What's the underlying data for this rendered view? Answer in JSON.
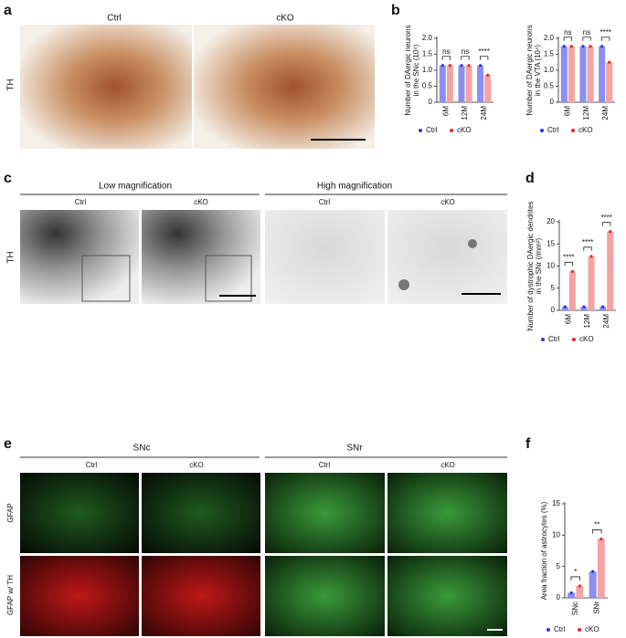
{
  "figure": {
    "panel_labels": [
      "a",
      "b",
      "c",
      "d",
      "e",
      "f"
    ],
    "a": {
      "columns": [
        "Ctrl",
        "cKO"
      ],
      "row": "TH"
    },
    "c": {
      "groups": [
        "Low magnification",
        "High magnification"
      ],
      "columns": [
        "Ctrl",
        "cKO",
        "Ctrl",
        "cKO"
      ],
      "row": "TH"
    },
    "e": {
      "groups": [
        "SNc",
        "SNr"
      ],
      "columns": [
        "Ctrl",
        "cKO",
        "Ctrl",
        "cKO"
      ],
      "rows": [
        "GFAP",
        "GFAP w/ TH"
      ]
    }
  },
  "chart_data": [
    {
      "type": "bar",
      "ylabel": [
        "Number of DAergic neurons",
        "in the SNc (10⁴)"
      ],
      "categories": [
        "6M",
        "12M",
        "24M"
      ],
      "series": [
        {
          "name": "Ctrl",
          "color": "#8a8ff0",
          "values": [
            1.15,
            1.15,
            1.15
          ]
        },
        {
          "name": "cKO",
          "color": "#f5a3a3",
          "values": [
            1.15,
            1.15,
            0.85
          ]
        }
      ],
      "annotations": [
        "ns",
        "ns",
        "****"
      ],
      "ylim": [
        0,
        2
      ],
      "yticks": [
        0,
        0.5,
        {
          "value": 1,
          "label": "1.0"
        },
        1.5,
        {
          "value": 2,
          "label": "2.0"
        }
      ]
    },
    {
      "type": "bar",
      "ylabel": [
        "Number of DAergic neurons",
        "in the VTA (10⁴)"
      ],
      "categories": [
        "6M",
        "12M",
        "24M"
      ],
      "series": [
        {
          "name": "Ctrl",
          "color": "#8a8ff0",
          "values": [
            1.75,
            1.75,
            1.75
          ]
        },
        {
          "name": "cKO",
          "color": "#f5a3a3",
          "values": [
            1.75,
            1.75,
            1.25
          ]
        }
      ],
      "annotations": [
        "ns",
        "ns",
        "****"
      ],
      "ylim": [
        0,
        2
      ],
      "yticks": [
        0,
        0.5,
        {
          "value": 1,
          "label": "1.0"
        },
        1.5,
        {
          "value": 2,
          "label": "2.0"
        }
      ]
    },
    {
      "type": "bar",
      "ylabel": [
        "Number of dystrophic DAergic dendrites",
        "in the SNr (/mm²)"
      ],
      "categories": [
        "6M",
        "12M",
        "24M"
      ],
      "series": [
        {
          "name": "Ctrl",
          "color": "#8a8ff0",
          "values": [
            0.8,
            0.8,
            0.8
          ]
        },
        {
          "name": "cKO",
          "color": "#f5a3a3",
          "values": [
            8.8,
            12.2,
            17.8
          ]
        }
      ],
      "annotations": [
        "****",
        "****",
        "****"
      ],
      "ylim": [
        0,
        20
      ],
      "yticks": [
        0,
        5,
        10,
        15,
        20
      ]
    },
    {
      "type": "bar",
      "ylabel": [
        "Area fraction of astrocytes (%)"
      ],
      "categories": [
        "SNc",
        "SNr"
      ],
      "series": [
        {
          "name": "Ctrl",
          "color": "#8a8ff0",
          "values": [
            0.8,
            4.2
          ]
        },
        {
          "name": "cKO",
          "color": "#f5a3a3",
          "values": [
            1.9,
            9.4
          ]
        }
      ],
      "annotations": [
        "*",
        "**"
      ],
      "ylim": [
        0,
        15
      ],
      "yticks": [
        0,
        5,
        10,
        15
      ]
    }
  ]
}
